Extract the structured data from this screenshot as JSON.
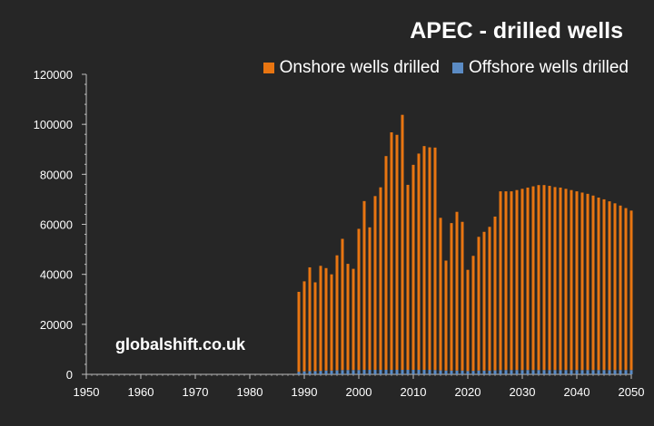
{
  "watermark": "globalshift.co.uk",
  "colors": {
    "background": "#262626",
    "onshore": "#e87511",
    "offshore": "#5b8bc4",
    "axis": "#bfbfbf"
  },
  "chart_data": {
    "type": "bar",
    "stacked": true,
    "title": "APEC - drilled wells",
    "xlabel": "",
    "ylabel": "",
    "xlim": [
      1950,
      2050
    ],
    "ylim": [
      0,
      120000
    ],
    "yticks": [
      0,
      20000,
      40000,
      60000,
      80000,
      100000,
      120000
    ],
    "xticks": [
      1950,
      1960,
      1970,
      1980,
      1990,
      2000,
      2010,
      2020,
      2030,
      2040,
      2050
    ],
    "legend_position": "top-right",
    "grid": false,
    "x": [
      1989,
      1990,
      1991,
      1992,
      1993,
      1994,
      1995,
      1996,
      1997,
      1998,
      1999,
      2000,
      2001,
      2002,
      2003,
      2004,
      2005,
      2006,
      2007,
      2008,
      2009,
      2010,
      2011,
      2012,
      2013,
      2014,
      2015,
      2016,
      2017,
      2018,
      2019,
      2020,
      2021,
      2022,
      2023,
      2024,
      2025,
      2026,
      2027,
      2028,
      2029,
      2030,
      2031,
      2032,
      2033,
      2034,
      2035,
      2036,
      2037,
      2038,
      2039,
      2040,
      2041,
      2042,
      2043,
      2044,
      2045,
      2046,
      2047,
      2048,
      2049,
      2050
    ],
    "series": [
      {
        "name": "Onshore wells drilled",
        "values": [
          32000,
          36000,
          41500,
          35500,
          42000,
          41000,
          38500,
          46000,
          52500,
          42500,
          40500,
          56500,
          67500,
          57000,
          69500,
          73000,
          85500,
          95000,
          94000,
          102000,
          74000,
          82000,
          86500,
          89500,
          89000,
          89000,
          61000,
          44000,
          59000,
          63500,
          59500,
          40500,
          46000,
          53500,
          55500,
          57500,
          61500,
          71500,
          71500,
          71500,
          72000,
          72500,
          73000,
          73500,
          74000,
          74000,
          73700,
          73200,
          73000,
          72500,
          72000,
          71500,
          71000,
          70500,
          69800,
          69000,
          68300,
          67500,
          66700,
          65800,
          64800,
          63800
        ]
      },
      {
        "name": "Offshore wells drilled",
        "values": [
          1000,
          1200,
          1300,
          1300,
          1400,
          1500,
          1500,
          1600,
          1700,
          1700,
          1700,
          1700,
          1800,
          1800,
          1800,
          1800,
          1800,
          1800,
          1800,
          1800,
          1800,
          1800,
          1800,
          1800,
          1800,
          1700,
          1600,
          1500,
          1500,
          1500,
          1500,
          1300,
          1400,
          1500,
          1500,
          1500,
          1600,
          1700,
          1700,
          1700,
          1700,
          1700,
          1700,
          1700,
          1700,
          1700,
          1700,
          1700,
          1700,
          1700,
          1700,
          1700,
          1700,
          1700,
          1700,
          1700,
          1700,
          1700,
          1700,
          1700,
          1700,
          1700
        ]
      }
    ]
  }
}
